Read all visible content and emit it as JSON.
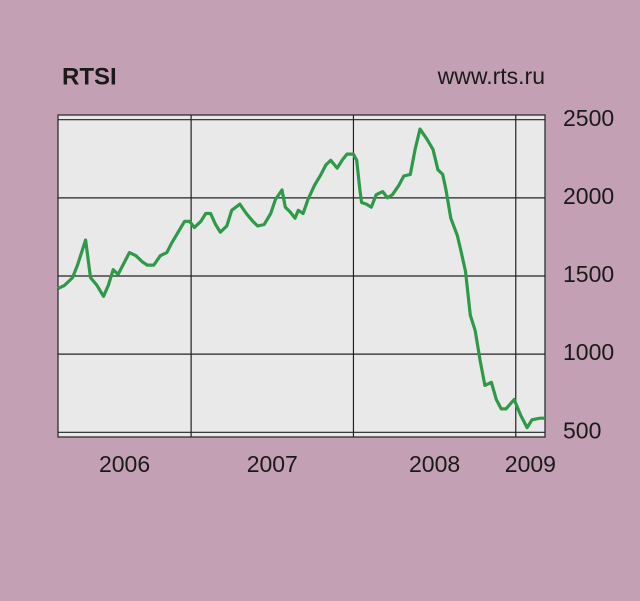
{
  "chart_data": {
    "type": "line",
    "title": "RTSI",
    "source": "www.rts.ru",
    "x": [
      2006.18,
      2006.22,
      2006.27,
      2006.3,
      2006.35,
      2006.38,
      2006.42,
      2006.46,
      2006.49,
      2006.52,
      2006.55,
      2006.59,
      2006.62,
      2006.66,
      2006.7,
      2006.73,
      2006.77,
      2006.81,
      2006.85,
      2006.88,
      2006.92,
      2006.96,
      2006.99,
      2007.02,
      2007.06,
      2007.09,
      2007.12,
      2007.15,
      2007.18,
      2007.22,
      2007.25,
      2007.3,
      2007.34,
      2007.38,
      2007.41,
      2007.45,
      2007.49,
      2007.52,
      2007.56,
      2007.58,
      2007.61,
      2007.64,
      2007.66,
      2007.69,
      2007.72,
      2007.76,
      2007.8,
      2007.83,
      2007.86,
      2007.9,
      2007.93,
      2007.96,
      2008.0,
      2008.02,
      2008.04,
      2008.05,
      2008.08,
      2008.11,
      2008.14,
      2008.18,
      2008.21,
      2008.24,
      2008.28,
      2008.31,
      2008.35,
      2008.38,
      2008.41,
      2008.45,
      2008.49,
      2008.52,
      2008.55,
      2008.57,
      2008.6,
      2008.64,
      2008.66,
      2008.69,
      2008.72,
      2008.75,
      2008.78,
      2008.81,
      2008.85,
      2008.88,
      2008.91,
      2008.94,
      2008.99,
      2009.03,
      2009.07,
      2009.1,
      2009.15,
      2009.18
    ],
    "series": [
      {
        "color": "#2e9a48",
        "values": [
          1420,
          1440,
          1490,
          1570,
          1730,
          1490,
          1440,
          1370,
          1440,
          1540,
          1510,
          1590,
          1650,
          1630,
          1590,
          1570,
          1570,
          1630,
          1650,
          1710,
          1780,
          1850,
          1850,
          1810,
          1850,
          1900,
          1900,
          1830,
          1780,
          1820,
          1920,
          1960,
          1900,
          1850,
          1820,
          1830,
          1900,
          1990,
          2050,
          1940,
          1910,
          1870,
          1920,
          1900,
          1990,
          2080,
          2150,
          2210,
          2240,
          2190,
          2240,
          2280,
          2280,
          2240,
          2050,
          1970,
          1960,
          1940,
          2020,
          2040,
          2000,
          2020,
          2080,
          2140,
          2150,
          2310,
          2440,
          2380,
          2310,
          2180,
          2150,
          2050,
          1870,
          1760,
          1670,
          1530,
          1250,
          1150,
          960,
          800,
          820,
          710,
          650,
          650,
          710,
          610,
          530,
          580,
          590,
          590
        ]
      }
    ],
    "xlim": [
      2006.18,
      2009.18
    ],
    "ylim": [
      470,
      2530
    ],
    "yticks": [
      500,
      1000,
      1500,
      2000,
      2500
    ],
    "xticks": [
      2007,
      2008,
      2009
    ],
    "x_labels": [
      {
        "value": 2006,
        "label": "2006"
      },
      {
        "value": 2007,
        "label": "2007"
      },
      {
        "value": 2008,
        "label": "2008"
      },
      {
        "value": 2009,
        "label": "2009"
      }
    ],
    "grid": true
  }
}
